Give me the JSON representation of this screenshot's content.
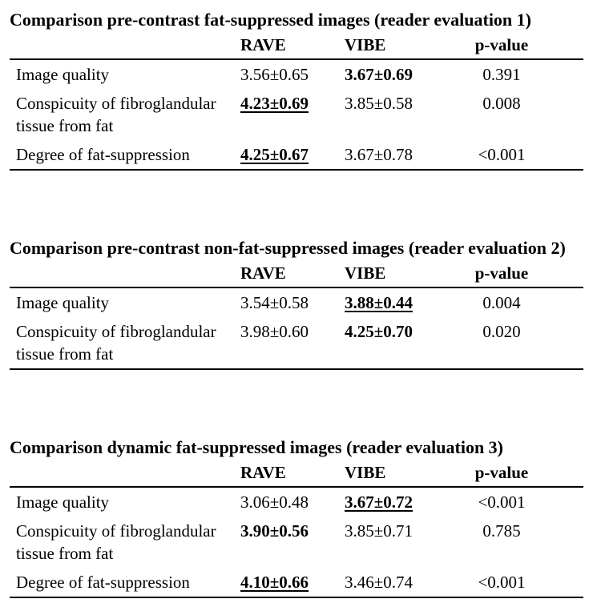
{
  "page": {
    "background": "#ffffff",
    "text_color": "#000000",
    "rule_color": "#000000"
  },
  "tables": [
    {
      "title": "Comparison pre-contrast fat-suppressed images (reader evaluation 1)",
      "columns": {
        "label": "",
        "rave": "RAVE",
        "vibe": "VIBE",
        "p": "p-value"
      },
      "rows": [
        {
          "label": "Image quality",
          "rave": {
            "text": "3.56±0.65",
            "emphasis": "normal"
          },
          "vibe": {
            "text": "3.67±0.69",
            "emphasis": "bold"
          },
          "p": "0.391"
        },
        {
          "label": "Conspicuity of fibroglandular tissue from fat",
          "rave": {
            "text": "4.23±0.69",
            "emphasis": "bold-underline"
          },
          "vibe": {
            "text": "3.85±0.58",
            "emphasis": "normal"
          },
          "p": "0.008"
        },
        {
          "label": "Degree of fat-suppression",
          "rave": {
            "text": "4.25±0.67",
            "emphasis": "bold-underline"
          },
          "vibe": {
            "text": "3.67±0.78",
            "emphasis": "normal"
          },
          "p": "<0.001"
        }
      ]
    },
    {
      "title": "Comparison pre-contrast non-fat-suppressed images (reader evaluation 2)",
      "columns": {
        "label": "",
        "rave": "RAVE",
        "vibe": "VIBE",
        "p": "p-value"
      },
      "rows": [
        {
          "label": "Image quality",
          "rave": {
            "text": "3.54±0.58",
            "emphasis": "normal"
          },
          "vibe": {
            "text": "3.88±0.44",
            "emphasis": "bold-underline"
          },
          "p": "0.004"
        },
        {
          "label": "Conspicuity of fibroglandular tissue from fat",
          "rave": {
            "text": "3.98±0.60",
            "emphasis": "normal"
          },
          "vibe": {
            "text": "4.25±0.70",
            "emphasis": "bold"
          },
          "p": "0.020"
        }
      ]
    },
    {
      "title": "Comparison dynamic fat-suppressed images (reader evaluation 3)",
      "columns": {
        "label": "",
        "rave": "RAVE",
        "vibe": "VIBE",
        "p": "p-value"
      },
      "rows": [
        {
          "label": "Image quality",
          "rave": {
            "text": "3.06±0.48",
            "emphasis": "normal"
          },
          "vibe": {
            "text": "3.67±0.72",
            "emphasis": "bold-underline"
          },
          "p": "<0.001"
        },
        {
          "label": "Conspicuity of fibroglandular tissue from fat",
          "rave": {
            "text": "3.90±0.56",
            "emphasis": "bold"
          },
          "vibe": {
            "text": "3.85±0.71",
            "emphasis": "normal"
          },
          "p": "0.785"
        },
        {
          "label": "Degree of fat-suppression",
          "rave": {
            "text": "4.10±0.66",
            "emphasis": "bold-underline"
          },
          "vibe": {
            "text": "3.46±0.74",
            "emphasis": "normal"
          },
          "p": "<0.001"
        }
      ]
    }
  ]
}
